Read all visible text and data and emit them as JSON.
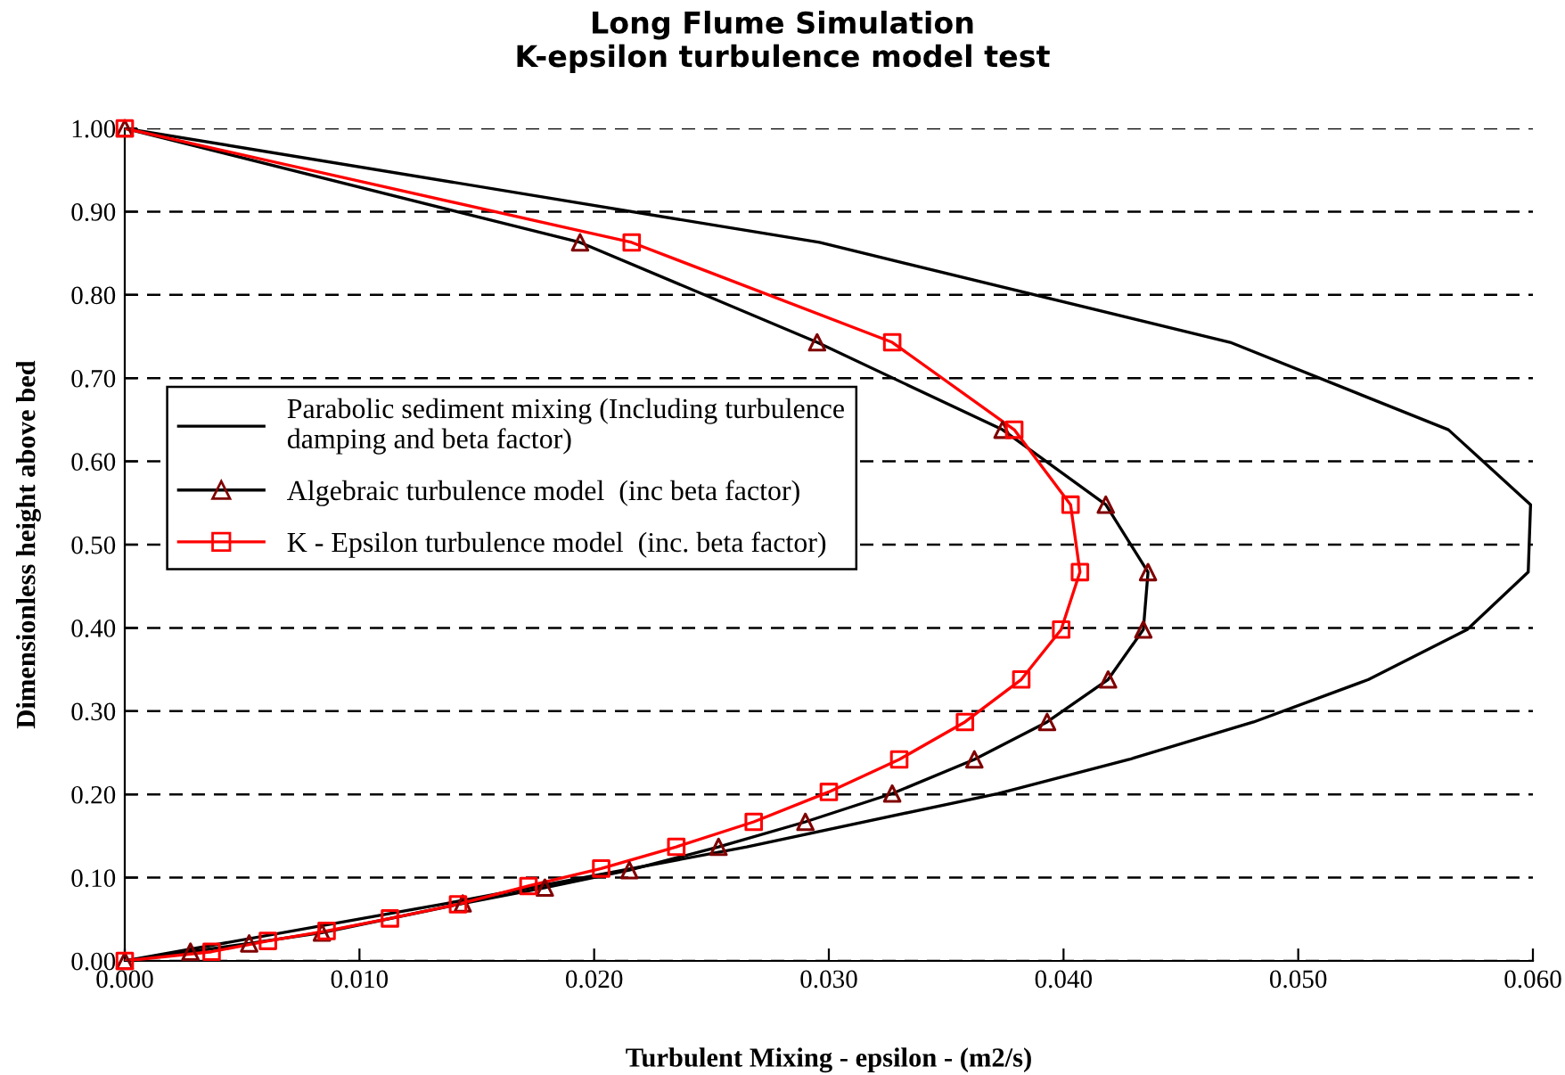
{
  "chart_data": {
    "type": "line",
    "title": "Long Flume Simulation\nK-epsilon turbulence model test",
    "xlabel": "Turbulent Mixing - epsilon - (m2/s)",
    "ylabel": "Dimensionless height above bed",
    "xlim": [
      0,
      0.06
    ],
    "ylim": [
      0,
      1
    ],
    "xticks": [
      {
        "value": 0,
        "label": "0.000"
      },
      {
        "value": 0.01,
        "label": "0.010"
      },
      {
        "value": 0.02,
        "label": "0.020"
      },
      {
        "value": 0.03,
        "label": "0.030"
      },
      {
        "value": 0.04,
        "label": "0.040"
      },
      {
        "value": 0.05,
        "label": "0.050"
      },
      {
        "value": 0.06,
        "label": "0.060"
      }
    ],
    "yticks": [
      {
        "value": 0,
        "label": "0.00"
      },
      {
        "value": 0.1,
        "label": "0.10"
      },
      {
        "value": 0.2,
        "label": "0.20"
      },
      {
        "value": 0.3,
        "label": "0.30"
      },
      {
        "value": 0.4,
        "label": "0.40"
      },
      {
        "value": 0.5,
        "label": "0.50"
      },
      {
        "value": 0.6,
        "label": "0.60"
      },
      {
        "value": 0.7,
        "label": "0.70"
      },
      {
        "value": 0.8,
        "label": "0.80"
      },
      {
        "value": 0.9,
        "label": "0.90"
      },
      {
        "value": 1.0,
        "label": "1.00"
      }
    ],
    "grid": "y",
    "legend": "left",
    "series": [
      {
        "name": "Parabolic sediment mixing (Including turbulence\ndamping and beta factor)",
        "color": "#000000",
        "marker": "none",
        "x": [
          0,
          0.0137,
          0.0265,
          0.0372,
          0.0428,
          0.0481,
          0.053,
          0.0572,
          0.0598,
          0.0599,
          0.0564,
          0.0471,
          0.0296,
          0
        ],
        "values": [
          0,
          0.069,
          0.137,
          0.201,
          0.242,
          0.287,
          0.338,
          0.398,
          0.467,
          0.548,
          0.638,
          0.743,
          0.863,
          1.0
        ]
      },
      {
        "name": "Algebraic turbulence model  (inc beta factor)",
        "color": "#000000",
        "marker": "triangle",
        "colors": [
          "#800000",
          "#800000",
          "#800000",
          "#800000",
          "#800000",
          "#800000",
          "#800000",
          "#800000",
          "#800000",
          "#800000",
          "#800000",
          "#800000",
          "#800000",
          "#800000",
          "#800000",
          "#800000",
          "#800000",
          "#800000",
          "#800000",
          "#800000"
        ],
        "x": [
          0,
          0.0028,
          0.0053,
          0.0084,
          0.0144,
          0.0179,
          0.0215,
          0.0253,
          0.029,
          0.0327,
          0.0362,
          0.0393,
          0.0419,
          0.0434,
          0.0436,
          0.0418,
          0.0374,
          0.0295,
          0.0194,
          0
        ],
        "values": [
          0,
          0.011,
          0.021,
          0.034,
          0.069,
          0.088,
          0.109,
          0.137,
          0.167,
          0.201,
          0.242,
          0.287,
          0.338,
          0.398,
          0.467,
          0.548,
          0.638,
          0.743,
          0.863,
          1.0
        ]
      },
      {
        "name": "K - Epsilon turbulence model  (inc. beta factor)",
        "color": "#ff0000",
        "marker": "square",
        "x": [
          0,
          0.0037,
          0.0061,
          0.0086,
          0.0113,
          0.0142,
          0.0172,
          0.0203,
          0.0235,
          0.0268,
          0.03,
          0.033,
          0.0358,
          0.0382,
          0.0399,
          0.0407,
          0.0403,
          0.0379,
          0.0327,
          0.0216,
          0
        ],
        "values": [
          0,
          0.011,
          0.024,
          0.036,
          0.051,
          0.068,
          0.09,
          0.111,
          0.137,
          0.167,
          0.203,
          0.242,
          0.287,
          0.338,
          0.398,
          0.467,
          0.548,
          0.638,
          0.743,
          0.863,
          1.0
        ]
      }
    ]
  }
}
